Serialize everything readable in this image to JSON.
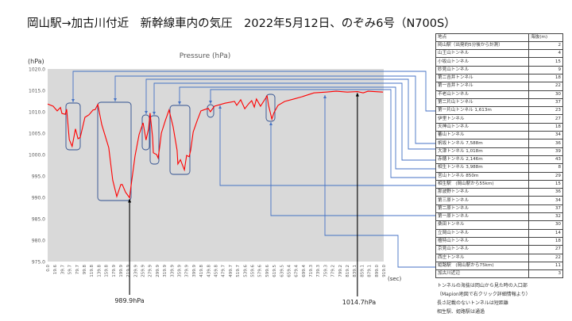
{
  "title": "岡山駅→加古川付近　新幹線車内の気圧　2022年5月12日、のぞみ6号（N700S）",
  "chart_data": {
    "type": "line",
    "title": "Pressure (hPa)",
    "ylabel": "(hPa)",
    "xlabel": "(sec)",
    "ylim": [
      975.0,
      1020.0
    ],
    "xlim": [
      0,
      919
    ],
    "y_ticks": [
      "1020.0",
      "1015.0",
      "1010.0",
      "1005.0",
      "1000.0",
      "995.0",
      "990.0",
      "985.0",
      "980.0",
      "975.0"
    ],
    "x_ticks": [
      "0.0",
      "19.6",
      "39.7",
      "59.7",
      "79.7",
      "99.8",
      "119.8",
      "139.8",
      "159.8",
      "179.9",
      "199.9",
      "219.9",
      "239.9",
      "259.9",
      "279.9",
      "299.9",
      "319.9",
      "339.9",
      "359.9",
      "379.9",
      "399.9",
      "419.8",
      "439.8",
      "459.8",
      "479.7",
      "499.7",
      "519.7",
      "539.6",
      "559.6",
      "579.6",
      "599.6",
      "619.5",
      "639.5",
      "659.4",
      "679.4",
      "699.4",
      "719.3",
      "739.3",
      "759.3",
      "779.2",
      "799.2",
      "819.2",
      "839.1",
      "859.1",
      "879.1",
      "899.0",
      "919.0"
    ],
    "grid": false,
    "series": [
      {
        "name": "Pressure (hPa)",
        "color": "#ff0000",
        "x": [
          0,
          15,
          26,
          35,
          39,
          48,
          52,
          59,
          67,
          76,
          83,
          89,
          102,
          113,
          124,
          130,
          137,
          148,
          167,
          178,
          189,
          200,
          204,
          213,
          224,
          228,
          239,
          250,
          261,
          269,
          276,
          280,
          287,
          289,
          298,
          302,
          306,
          311,
          322,
          332,
          343,
          354,
          356,
          363,
          374,
          380,
          387,
          391,
          398,
          409,
          419,
          439,
          445,
          456,
          485,
          511,
          517,
          528,
          539,
          550,
          558,
          565,
          571,
          582,
          600,
          604,
          613,
          619,
          630,
          648,
          674,
          695,
          728,
          761,
          789,
          819,
          847,
          863,
          876,
          917
        ],
        "y": [
          1011.8,
          1011.3,
          1010.2,
          1011.0,
          1009.6,
          1009.4,
          1010.6,
          1003.5,
          1001.9,
          1006.0,
          1003.7,
          1004.0,
          1008.7,
          1009.3,
          1010.4,
          1010.5,
          1011.7,
          1007.0,
          1001.6,
          994.0,
          990.2,
          993.0,
          993.0,
          991.2,
          989.9,
          992.6,
          999.7,
          1004.7,
          1007.4,
          1003.4,
          1006.0,
          1009.7,
          1004.0,
          1000.4,
          1000.0,
          999.2,
          1001.5,
          1005.0,
          1008.0,
          1010.4,
          1006.5,
          1001.0,
          997.8,
          998.8,
          996.4,
          999.8,
          999.5,
          1001.0,
          1005.3,
          1008.0,
          1010.2,
          1010.8,
          1010.0,
          1011.3,
          1012.0,
          1012.4,
          1011.5,
          1012.8,
          1010.7,
          1011.9,
          1012.6,
          1011.1,
          1013.0,
          1011.3,
          1013.7,
          1011.5,
          1008.3,
          1009.8,
          1011.5,
          1012.4,
          1013.0,
          1013.5,
          1014.4,
          1014.6,
          1014.8,
          1014.6,
          1014.7,
          1014.4,
          1014.8,
          1014.6
        ]
      }
    ],
    "annotations": [
      {
        "text": "989.9hPa",
        "x": 224,
        "y": 989.9
      },
      {
        "text": "1014.7hPa",
        "x": 847,
        "y": 1014.7
      }
    ]
  },
  "table": {
    "headers": [
      "地点",
      "海抜(m)"
    ],
    "rows": [
      [
        "岡山駅（出発約5分後から計測）",
        "2"
      ],
      [
        "山王山トンネル",
        "4"
      ],
      [
        "小坂山トンネル",
        "15"
      ],
      [
        "妙見山トンネル",
        "9"
      ],
      [
        "第二吉井トンネル",
        "18"
      ],
      [
        "第一吉井トンネル",
        "22"
      ],
      [
        "不老山トンネル",
        "30"
      ],
      [
        "第二片山トンネル",
        "37"
      ],
      [
        "第一片山トンネル 1,613m",
        "23"
      ],
      [
        "伊里トンネル",
        "27"
      ],
      [
        "天神山トンネル",
        "18"
      ],
      [
        "蕃山トンネル",
        "34"
      ],
      [
        "帆坂トンネル 7,588m",
        "36"
      ],
      [
        "大津トンネル 1,018m",
        "39"
      ],
      [
        "赤穂トンネル 2,146m",
        "43"
      ],
      [
        "相生トンネル 3,988m",
        "8"
      ],
      [
        "宮山トンネル 850m",
        "29"
      ],
      [
        "相生駅　(岡山駅から55km)",
        "15"
      ],
      [
        "那波野トンネル",
        "36"
      ],
      [
        "第三原トンネル",
        "34"
      ],
      [
        "第二原トンネル",
        "37"
      ],
      [
        "第一原トンネル",
        "32"
      ],
      [
        "桑田トンネル",
        "30"
      ],
      [
        "立岡山トンネル",
        "14"
      ],
      [
        "檀特山トンネル",
        "18"
      ],
      [
        "京見山トンネル",
        "27"
      ],
      [
        "西庄トンネル",
        "22"
      ],
      [
        "姫路駅　(岡山駅から75km)",
        "11"
      ],
      [
        "加古川近辺",
        "3"
      ]
    ]
  },
  "notes": [
    "トンネルの海抜は岡山から見た時の入口部",
    "（Mapion地図で右クリック詳細情報より）",
    "長さ記載のないトンネルは短距離",
    "相生駅、姫路駅は通過"
  ],
  "colors": {
    "line": "#ff0000",
    "plot_bg": "#d9d9d9",
    "connector": "#4472c4",
    "box": "#2f4f8f"
  }
}
